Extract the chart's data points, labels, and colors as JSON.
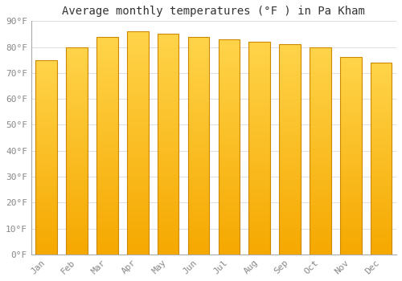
{
  "title": "Average monthly temperatures (°F ) in Pa Kham",
  "months": [
    "Jan",
    "Feb",
    "Mar",
    "Apr",
    "May",
    "Jun",
    "Jul",
    "Aug",
    "Sep",
    "Oct",
    "Nov",
    "Dec"
  ],
  "values": [
    75,
    80,
    84,
    86,
    85,
    84,
    83,
    82,
    81,
    80,
    76,
    74
  ],
  "bar_color_top": "#FFD44A",
  "bar_color_bottom": "#F5A800",
  "bar_edge_color": "#CC8800",
  "ylim": [
    0,
    90
  ],
  "yticks": [
    0,
    10,
    20,
    30,
    40,
    50,
    60,
    70,
    80,
    90
  ],
  "ytick_labels": [
    "0°F",
    "10°F",
    "20°F",
    "30°F",
    "40°F",
    "50°F",
    "60°F",
    "70°F",
    "80°F",
    "90°F"
  ],
  "background_color": "#FFFFFF",
  "grid_color": "#DDDDDD",
  "title_fontsize": 10,
  "tick_fontsize": 8,
  "tick_color": "#888888",
  "bar_width": 0.7
}
